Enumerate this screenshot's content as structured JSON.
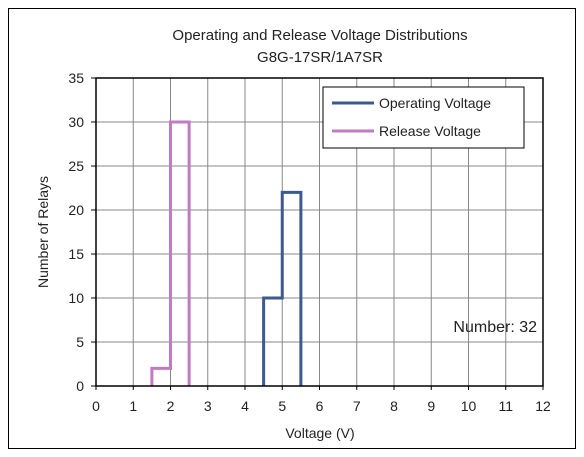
{
  "chart_data": {
    "type": "line",
    "title_line1": "Operating and Release Voltage Distributions",
    "title_line2": "G8G-17SR/1A7SR",
    "xlabel": "Voltage (V)",
    "ylabel": "Number of Relays",
    "xlim": [
      0,
      12
    ],
    "ylim": [
      0,
      35
    ],
    "x_ticks": [
      0,
      1,
      2,
      3,
      4,
      5,
      6,
      7,
      8,
      9,
      10,
      11,
      12
    ],
    "y_ticks": [
      0,
      5,
      10,
      15,
      20,
      25,
      30,
      35
    ],
    "grid": true,
    "legend_position": "top-right",
    "annotation": "Number: 32",
    "series": [
      {
        "name": "Operating Voltage",
        "color": "#3c5a8e",
        "bins": [
          {
            "from": 4.5,
            "to": 5.0,
            "count": 10
          },
          {
            "from": 5.0,
            "to": 5.5,
            "count": 22
          }
        ]
      },
      {
        "name": "Release Voltage",
        "color": "#c27bc0",
        "bins": [
          {
            "from": 1.5,
            "to": 2.0,
            "count": 2
          },
          {
            "from": 2.0,
            "to": 2.5,
            "count": 30
          }
        ]
      }
    ]
  }
}
